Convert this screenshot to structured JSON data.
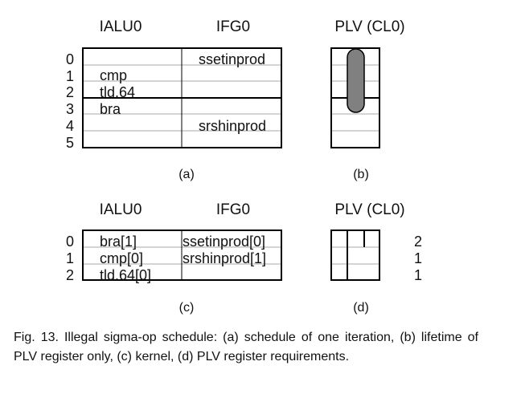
{
  "top": {
    "headers": {
      "ialu": "IALU0",
      "ifg": "IFG0",
      "plv": "PLV (CL0)"
    },
    "row_numbers": [
      "0",
      "1",
      "2",
      "3",
      "4",
      "5"
    ],
    "ialu_ops": [
      "cmp",
      "tld.64",
      "bra"
    ],
    "ifg_ops": [
      "ssetinprod",
      "srshinprod"
    ],
    "label_a": "(a)",
    "label_b": "(b)"
  },
  "bottom": {
    "headers": {
      "ialu": "IALU0",
      "ifg": "IFG0",
      "plv": "PLV (CL0)"
    },
    "row_numbers": [
      "0",
      "1",
      "2"
    ],
    "ialu_ops": [
      "bra[1]",
      "cmp[0]",
      "tld.64[0]"
    ],
    "ifg_ops": [
      "ssetinprod[0]",
      "srshinprod[1]"
    ],
    "requirements": [
      "2",
      "1",
      "1"
    ],
    "label_c": "(c)",
    "label_d": "(d)"
  },
  "caption": "Fig. 13. Illegal sigma-op schedule: (a) schedule of one iteration, (b) lifetime of PLV register only, (c) kernel, (d) PLV register requirements.",
  "colors": {
    "lifetime_bar": "#808080"
  }
}
